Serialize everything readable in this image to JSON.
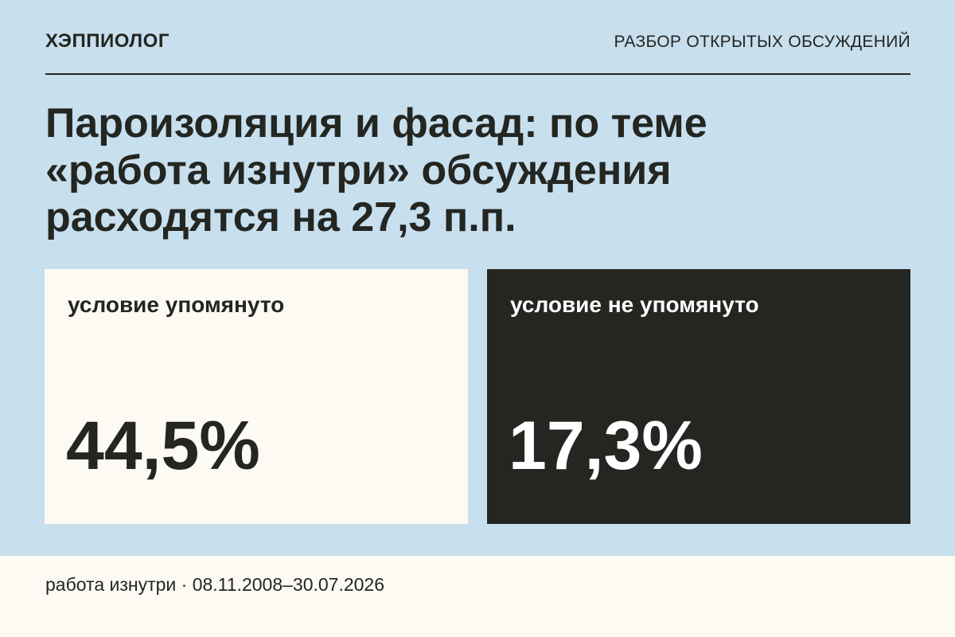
{
  "header": {
    "brand": "ХЭППИОЛОГ",
    "section_label": "РАЗБОР ОТКРЫТЫХ ОБСУЖДЕНИЙ"
  },
  "headline": {
    "line1": "Пароизоляция и фасад: по теме",
    "line2": "«работа изнутри» обсуждения",
    "line3": "расходятся на 27,3 п.п."
  },
  "cards": [
    {
      "label": "условие упомянуто",
      "value": "44,5%",
      "value_fraction": 0.445
    },
    {
      "label": "условие не упомянуто",
      "value": "17,3%",
      "value_fraction": 0.173
    }
  ],
  "footer": {
    "text": "работа изнутри · 08.11.2008–30.07.2026"
  },
  "colors": {
    "background": "#c8dfee",
    "light_panel": "#fdfaf3",
    "dark_panel": "#232621",
    "text_dark": "#232621",
    "text_light": "#ffffff"
  }
}
